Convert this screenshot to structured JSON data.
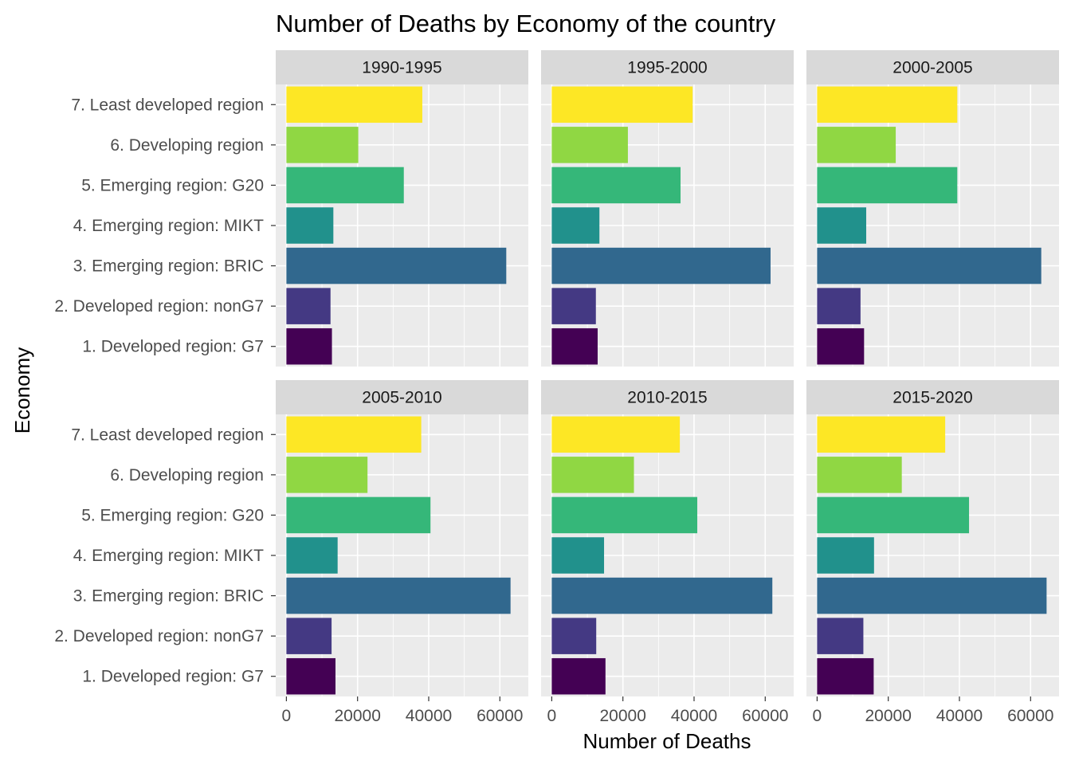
{
  "chart_data": {
    "type": "bar",
    "orientation": "horizontal",
    "facets": "2 rows x 3 columns",
    "title": "Number of Deaths by Economy of the country",
    "xlabel": "Number of Deaths",
    "ylabel": "Economy",
    "xlim": [
      -3000,
      68000
    ],
    "xticks": [
      0,
      20000,
      40000,
      60000
    ],
    "xtick_labels": [
      "0",
      "20000",
      "40000",
      "60000"
    ],
    "grid": true,
    "legend": "none",
    "categories": [
      "1. Developed region: G7",
      "2. Developed region: nonG7",
      "3. Emerging region: BRIC",
      "4. Emerging region: MIKT",
      "5. Emerging region: G20",
      "6. Developing region",
      "7. Least developed region"
    ],
    "colors": [
      "#440154",
      "#443983",
      "#31688e",
      "#21918c",
      "#35b779",
      "#90d743",
      "#fde725"
    ],
    "panels": [
      {
        "label": "1990-1995",
        "values": [
          12800,
          12400,
          61800,
          13200,
          33000,
          20200,
          38200
        ]
      },
      {
        "label": "1995-2000",
        "values": [
          12900,
          12400,
          61500,
          13400,
          36200,
          21400,
          39600
        ]
      },
      {
        "label": "2000-2005",
        "values": [
          13200,
          12200,
          63000,
          13800,
          39400,
          22100,
          39400
        ]
      },
      {
        "label": "2005-2010",
        "values": [
          13800,
          12700,
          63000,
          14400,
          40500,
          22800,
          37900
        ]
      },
      {
        "label": "2010-2015",
        "values": [
          15100,
          12500,
          62000,
          14700,
          40900,
          23100,
          36000
        ]
      },
      {
        "label": "2015-2020",
        "values": [
          15900,
          13000,
          64500,
          16000,
          42700,
          23800,
          36000
        ]
      }
    ]
  }
}
